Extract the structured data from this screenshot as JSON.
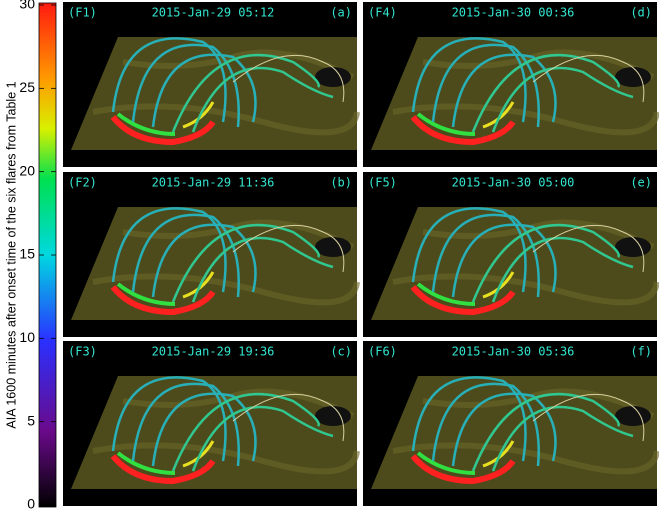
{
  "colorbar": {
    "label": "AIA 1600 minutes after onset time of the six flares from Table 1",
    "lim": [
      0,
      30
    ],
    "ticks": [
      0,
      5,
      10,
      15,
      20,
      25,
      30
    ]
  },
  "panels": [
    {
      "id": "(F1)",
      "time": "2015-Jan-29 05:12",
      "letter": "(a)"
    },
    {
      "id": "(F4)",
      "time": "2015-Jan-30 00:36",
      "letter": "(d)"
    },
    {
      "id": "(F2)",
      "time": "2015-Jan-29 11:36",
      "letter": "(b)"
    },
    {
      "id": "(F5)",
      "time": "2015-Jan-30 05:00",
      "letter": "(e)"
    },
    {
      "id": "(F3)",
      "time": "2015-Jan-29 19:36",
      "letter": "(c)"
    },
    {
      "id": "(F6)",
      "time": "2015-Jan-30 05:36",
      "letter": "(f)"
    }
  ]
}
